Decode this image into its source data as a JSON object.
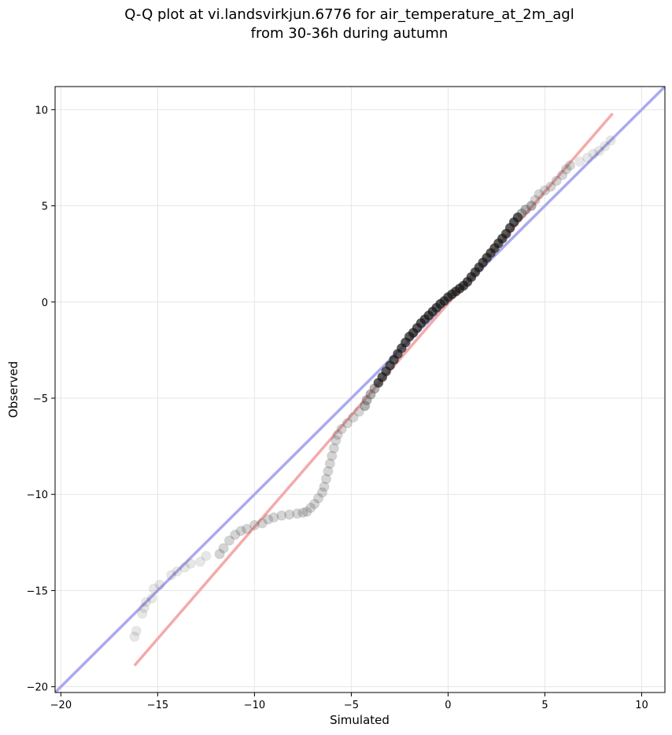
{
  "chart_data": {
    "type": "scatter",
    "title_line1": "Q-Q plot at vi.landsvirkjun.6776 for air_temperature_at_2m_agl",
    "title_line2": "from 30-36h during autumn",
    "xlabel": "Simulated",
    "ylabel": "Observed",
    "xlim": [
      -20.3,
      11.2
    ],
    "ylim": [
      -20.3,
      11.2
    ],
    "xticks": [
      -20,
      -15,
      -10,
      -5,
      0,
      5,
      10
    ],
    "yticks": [
      -20,
      -15,
      -10,
      -5,
      0,
      5,
      10
    ],
    "xtick_labels": [
      "−20",
      "−15",
      "−10",
      "−5",
      "0",
      "5",
      "10"
    ],
    "ytick_labels": [
      "−20",
      "−15",
      "−10",
      "−5",
      "0",
      "5",
      "10"
    ],
    "grid": true,
    "reference_line": {
      "color": "#aaaaee",
      "x": [
        -20.3,
        11.2
      ],
      "y": [
        -20.3,
        11.2
      ]
    },
    "fit_line": {
      "color": "#f4aaaa",
      "x": [
        -16.2,
        8.5
      ],
      "y": [
        -18.9,
        9.8
      ]
    },
    "marker_color": "#555555",
    "quantiles": [
      {
        "x": -16.2,
        "y": -17.4
      },
      {
        "x": -16.1,
        "y": -17.1
      },
      {
        "x": -15.8,
        "y": -16.2
      },
      {
        "x": -15.7,
        "y": -15.9
      },
      {
        "x": -15.6,
        "y": -15.6
      },
      {
        "x": -15.3,
        "y": -15.4
      },
      {
        "x": -15.2,
        "y": -14.9
      },
      {
        "x": -14.9,
        "y": -14.7
      },
      {
        "x": -14.3,
        "y": -14.2
      },
      {
        "x": -14.0,
        "y": -14.0
      },
      {
        "x": -13.6,
        "y": -13.8
      },
      {
        "x": -13.3,
        "y": -13.6
      },
      {
        "x": -12.8,
        "y": -13.5
      },
      {
        "x": -12.5,
        "y": -13.2
      },
      {
        "x": -11.8,
        "y": -13.1
      },
      {
        "x": -11.6,
        "y": -12.8
      },
      {
        "x": -11.3,
        "y": -12.4
      },
      {
        "x": -11.0,
        "y": -12.1
      },
      {
        "x": -10.7,
        "y": -11.9
      },
      {
        "x": -10.4,
        "y": -11.8
      },
      {
        "x": -10.0,
        "y": -11.6
      },
      {
        "x": -9.6,
        "y": -11.5
      },
      {
        "x": -9.3,
        "y": -11.3
      },
      {
        "x": -9.0,
        "y": -11.2
      },
      {
        "x": -8.6,
        "y": -11.1
      },
      {
        "x": -8.2,
        "y": -11.05
      },
      {
        "x": -7.8,
        "y": -11.0
      },
      {
        "x": -7.5,
        "y": -10.95
      },
      {
        "x": -7.3,
        "y": -10.9
      },
      {
        "x": -7.1,
        "y": -10.7
      },
      {
        "x": -6.9,
        "y": -10.5
      },
      {
        "x": -6.7,
        "y": -10.2
      },
      {
        "x": -6.5,
        "y": -9.9
      },
      {
        "x": -6.4,
        "y": -9.6
      },
      {
        "x": -6.3,
        "y": -9.2
      },
      {
        "x": -6.2,
        "y": -8.8
      },
      {
        "x": -6.1,
        "y": -8.4
      },
      {
        "x": -6.0,
        "y": -8.0
      },
      {
        "x": -5.9,
        "y": -7.6
      },
      {
        "x": -5.8,
        "y": -7.2
      },
      {
        "x": -5.7,
        "y": -6.9
      },
      {
        "x": -5.5,
        "y": -6.6
      },
      {
        "x": -5.2,
        "y": -6.3
      },
      {
        "x": -4.9,
        "y": -6.0
      },
      {
        "x": -4.6,
        "y": -5.7
      },
      {
        "x": -4.3,
        "y": -5.4
      },
      {
        "x": -4.2,
        "y": -5.1
      },
      {
        "x": -4.0,
        "y": -4.8
      },
      {
        "x": -3.8,
        "y": -4.5
      },
      {
        "x": -3.6,
        "y": -4.2
      },
      {
        "x": -3.4,
        "y": -3.9
      },
      {
        "x": -3.2,
        "y": -3.6
      },
      {
        "x": -3.0,
        "y": -3.3
      },
      {
        "x": -2.8,
        "y": -3.0
      },
      {
        "x": -2.6,
        "y": -2.7
      },
      {
        "x": -2.4,
        "y": -2.4
      },
      {
        "x": -2.2,
        "y": -2.1
      },
      {
        "x": -2.0,
        "y": -1.8
      },
      {
        "x": -1.8,
        "y": -1.6
      },
      {
        "x": -1.6,
        "y": -1.35
      },
      {
        "x": -1.4,
        "y": -1.1
      },
      {
        "x": -1.2,
        "y": -0.9
      },
      {
        "x": -1.0,
        "y": -0.7
      },
      {
        "x": -0.8,
        "y": -0.5
      },
      {
        "x": -0.6,
        "y": -0.3
      },
      {
        "x": -0.4,
        "y": -0.1
      },
      {
        "x": -0.2,
        "y": 0.05
      },
      {
        "x": 0.0,
        "y": 0.25
      },
      {
        "x": 0.2,
        "y": 0.4
      },
      {
        "x": 0.4,
        "y": 0.55
      },
      {
        "x": 0.6,
        "y": 0.7
      },
      {
        "x": 0.8,
        "y": 0.85
      },
      {
        "x": 1.0,
        "y": 1.05
      },
      {
        "x": 1.2,
        "y": 1.3
      },
      {
        "x": 1.4,
        "y": 1.55
      },
      {
        "x": 1.6,
        "y": 1.8
      },
      {
        "x": 1.8,
        "y": 2.05
      },
      {
        "x": 2.0,
        "y": 2.3
      },
      {
        "x": 2.2,
        "y": 2.55
      },
      {
        "x": 2.4,
        "y": 2.8
      },
      {
        "x": 2.6,
        "y": 3.05
      },
      {
        "x": 2.8,
        "y": 3.3
      },
      {
        "x": 3.0,
        "y": 3.55
      },
      {
        "x": 3.2,
        "y": 3.85
      },
      {
        "x": 3.4,
        "y": 4.15
      },
      {
        "x": 3.6,
        "y": 4.4
      },
      {
        "x": 3.8,
        "y": 4.6
      },
      {
        "x": 4.0,
        "y": 4.8
      },
      {
        "x": 4.3,
        "y": 5.0
      },
      {
        "x": 4.5,
        "y": 5.3
      },
      {
        "x": 4.7,
        "y": 5.6
      },
      {
        "x": 5.0,
        "y": 5.8
      },
      {
        "x": 5.3,
        "y": 6.0
      },
      {
        "x": 5.6,
        "y": 6.3
      },
      {
        "x": 5.9,
        "y": 6.6
      },
      {
        "x": 6.1,
        "y": 6.9
      },
      {
        "x": 6.3,
        "y": 7.1
      },
      {
        "x": 6.8,
        "y": 7.3
      },
      {
        "x": 7.2,
        "y": 7.5
      },
      {
        "x": 7.5,
        "y": 7.7
      },
      {
        "x": 7.8,
        "y": 7.85
      },
      {
        "x": 8.1,
        "y": 8.1
      },
      {
        "x": 8.4,
        "y": 8.4
      }
    ]
  }
}
